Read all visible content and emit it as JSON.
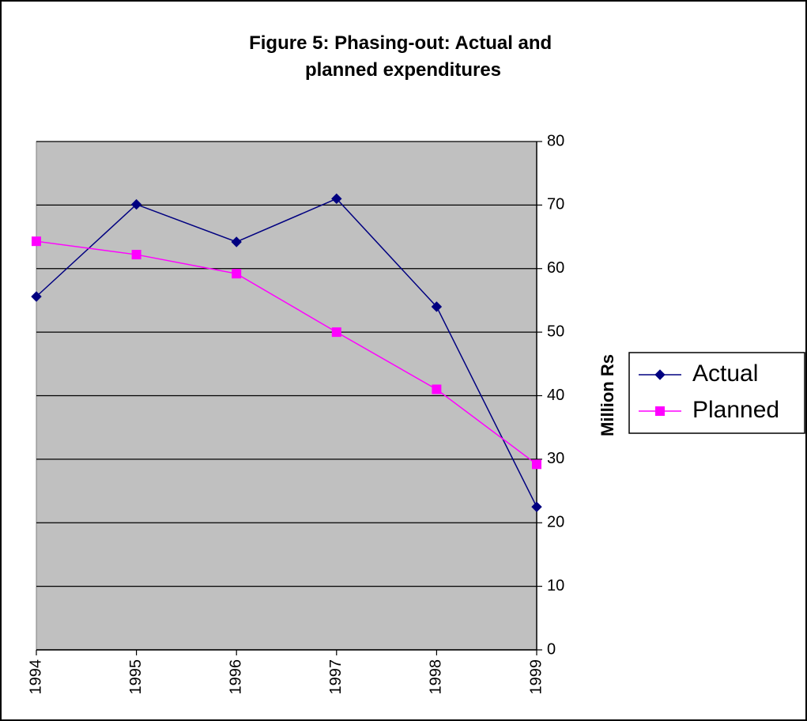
{
  "chart_data": {
    "type": "line",
    "title": "Figure 5: Phasing-out: Actual and planned expenditures",
    "y_axis_label": "Million Rs",
    "categories": [
      "1994",
      "1995",
      "1996",
      "1997",
      "1998",
      "1999"
    ],
    "series": [
      {
        "name": "Actual",
        "color": "#000080",
        "marker": "diamond",
        "values": [
          55.6,
          70.1,
          64.2,
          71.0,
          54.0,
          22.5
        ]
      },
      {
        "name": "Planned",
        "color": "#ff00ff",
        "marker": "square",
        "values": [
          64.3,
          62.2,
          59.2,
          50.0,
          41.0,
          29.2
        ]
      }
    ],
    "ylim": [
      0,
      80
    ],
    "yticks": [
      0,
      10,
      20,
      30,
      40,
      50,
      60,
      70,
      80
    ],
    "grid": true,
    "legend": "right",
    "plot_background": "#c0c0c0"
  }
}
